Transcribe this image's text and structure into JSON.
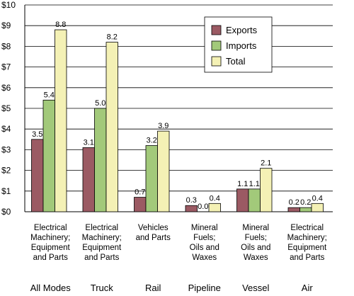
{
  "chart_data": {
    "type": "bar",
    "title": "",
    "xlabel": "",
    "ylabel": "",
    "ylim": [
      0,
      10
    ],
    "yticks": [
      "$0",
      "$1",
      "$2",
      "$3",
      "$4",
      "$5",
      "$6",
      "$7",
      "$8",
      "$9",
      "$10"
    ],
    "grid": true,
    "legend_position": "top-right",
    "categories": [
      {
        "mode": "All Modes",
        "commodity": [
          "Electrical",
          "Machinery;",
          "Equipment",
          "and Parts"
        ]
      },
      {
        "mode": "Truck",
        "commodity": [
          "Electrical",
          "Machinery;",
          "Equipment",
          "and Parts"
        ]
      },
      {
        "mode": "Rail",
        "commodity": [
          "Vehicles",
          "and Parts"
        ]
      },
      {
        "mode": "Pipeline",
        "commodity": [
          "Mineral",
          "Fuels;",
          "Oils and",
          "Waxes"
        ]
      },
      {
        "mode": "Vessel",
        "commodity": [
          "Mineral",
          "Fuels;",
          "Oils and",
          "Waxes"
        ]
      },
      {
        "mode": "Air",
        "commodity": [
          "Electrical",
          "Machinery;",
          "Equipment",
          "and Parts"
        ]
      }
    ],
    "series": [
      {
        "name": "Exports",
        "color": "#9b5a63",
        "values": [
          3.5,
          3.1,
          0.7,
          0.3,
          1.1,
          0.2
        ],
        "labels": [
          "3.5",
          "3.1",
          "0.7",
          "0.3",
          "1.1",
          "0.2"
        ]
      },
      {
        "name": "Imports",
        "color": "#a2c97a",
        "values": [
          5.4,
          5.0,
          3.2,
          0.0,
          1.1,
          0.2
        ],
        "labels": [
          "5.4",
          "5.0",
          "3.2",
          "0.0",
          "1.1",
          "0.2"
        ]
      },
      {
        "name": "Total",
        "color": "#f4f1b5",
        "values": [
          8.8,
          8.2,
          3.9,
          0.4,
          2.1,
          0.4
        ],
        "labels": [
          "8.8",
          "8.2",
          "3.9",
          "0.4",
          "2.1",
          "0.4"
        ]
      }
    ]
  }
}
